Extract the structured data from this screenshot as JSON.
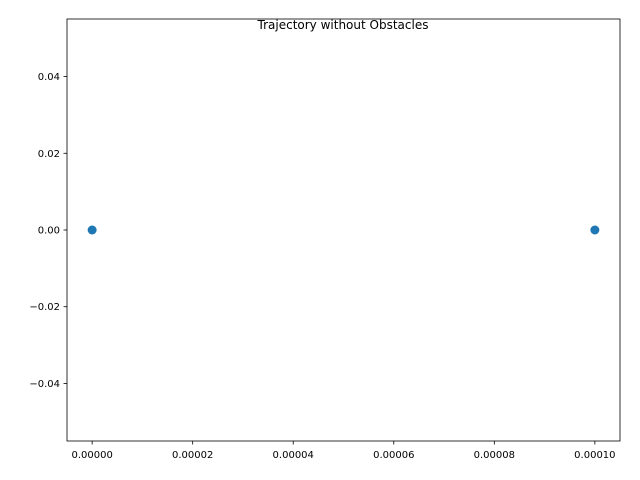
{
  "chart_data": {
    "type": "scatter",
    "title": "Trajectory without Obstacles",
    "xlabel": "",
    "ylabel": "",
    "xlim": [
      -5e-06,
      0.000105
    ],
    "ylim": [
      -0.055,
      0.055
    ],
    "xticks": [
      0.0,
      2e-05,
      4e-05,
      6e-05,
      8e-05,
      0.0001
    ],
    "xtick_labels": [
      "0.00000",
      "0.00002",
      "0.00004",
      "0.00006",
      "0.00008",
      "0.00010"
    ],
    "yticks": [
      -0.04,
      -0.02,
      0.0,
      0.02,
      0.04
    ],
    "ytick_labels": [
      "−0.04",
      "−0.02",
      "0.00",
      "0.02",
      "0.04"
    ],
    "grid": false,
    "series": [
      {
        "color": "#1f77b4",
        "points": [
          {
            "x": 0.0,
            "y": 0.0
          },
          {
            "x": 0.0001,
            "y": 0.0
          }
        ]
      }
    ]
  }
}
